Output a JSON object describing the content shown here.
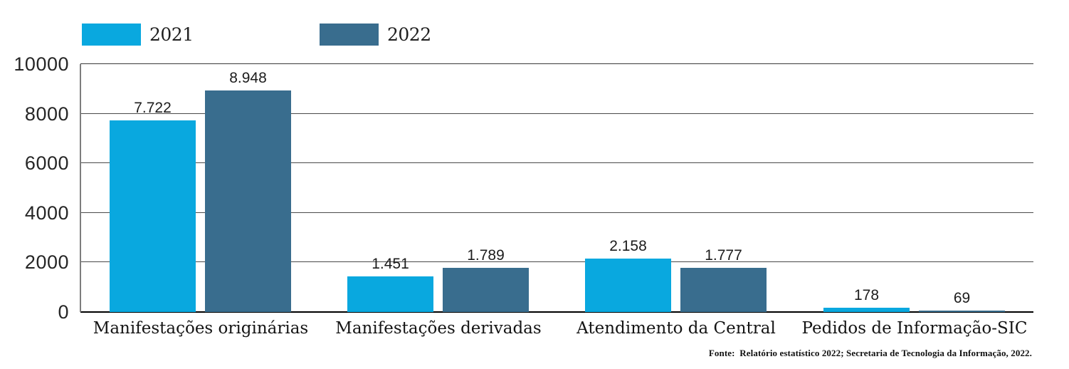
{
  "chart_data": {
    "type": "bar",
    "title": "",
    "xlabel": "",
    "ylabel": "",
    "categories": [
      "Manifestações originárias",
      "Manifestações derivadas",
      "Atendimento da Central",
      "Pedidos de Informação-SIC"
    ],
    "series": [
      {
        "name": "2021",
        "color": "#09A8DF",
        "values": [
          7722,
          1451,
          2158,
          178
        ],
        "value_labels": [
          "7.722",
          "1.451",
          "2.158",
          "178"
        ]
      },
      {
        "name": "2022",
        "color": "#396D8E",
        "values": [
          8948,
          1789,
          1777,
          69
        ],
        "value_labels": [
          "8.948",
          "1.789",
          "1.777",
          "69"
        ]
      }
    ],
    "ylim": [
      0,
      10000
    ],
    "y_ticks": [
      "10000",
      "8000",
      "6000",
      "4000",
      "2000",
      "0"
    ],
    "grid": "horizontal",
    "legend_position": "top-left"
  },
  "footer": {
    "source": "Fonte:  Relatório estatístico 2022; Secretaria de Tecnologia da Informação, 2022."
  }
}
